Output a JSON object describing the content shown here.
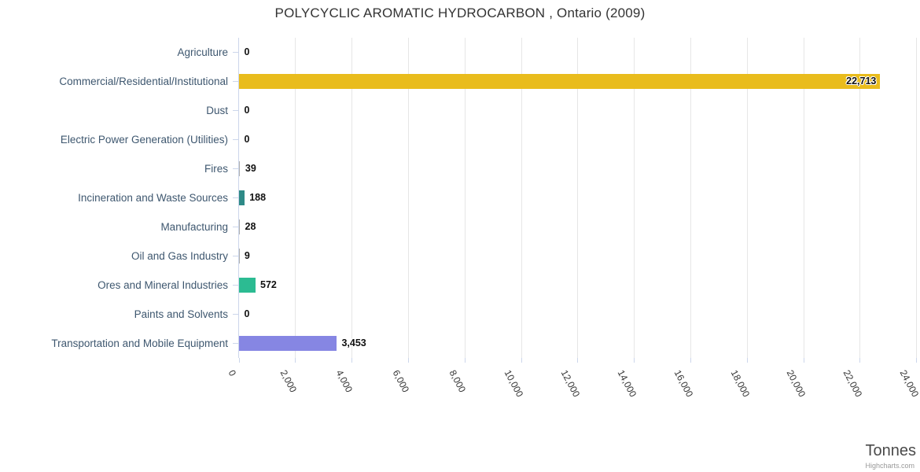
{
  "title": "POLYCYCLIC AROMATIC HYDROCARBON , Ontario (2009)",
  "y_axis_title": "Tonnes",
  "credits": "Highcharts.com",
  "chart_data": {
    "type": "bar",
    "title": "POLYCYCLIC AROMATIC HYDROCARBON , Ontario (2009)",
    "orientation": "horizontal",
    "categories": [
      "Agriculture",
      "Commercial/Residential/Institutional",
      "Dust",
      "Electric Power Generation (Utilities)",
      "Fires",
      "Incineration and Waste Sources",
      "Manufacturing",
      "Oil and Gas Industry",
      "Ores and Mineral Industries",
      "Paints and Solvents",
      "Transportation and Mobile Equipment"
    ],
    "values": [
      0,
      22713,
      0,
      0,
      39,
      188,
      28,
      9,
      572,
      0,
      3453
    ],
    "value_labels": [
      "0",
      "22,713",
      "0",
      "0",
      "39",
      "188",
      "28",
      "9",
      "572",
      "0",
      "3,453"
    ],
    "bar_colors": [
      "#b0b0b0",
      "#E9BC1C",
      "#b0b0b0",
      "#b0b0b0",
      "#b0b0b0",
      "#2E8A87",
      "#b0b0b0",
      "#b0b0b0",
      "#2CBB92",
      "#b0b0b0",
      "#8686E3"
    ],
    "xlabel": "Tonnes",
    "ylabel": "",
    "xlim": [
      0,
      24000
    ],
    "tick_interval": 2000,
    "tick_labels": [
      "0",
      "2,000",
      "4,000",
      "6,000",
      "8,000",
      "10,000",
      "12,000",
      "14,000",
      "16,000",
      "18,000",
      "20,000",
      "22,000",
      "24,000"
    ],
    "grid": true,
    "legend": "none"
  },
  "colors": {
    "grid": "#e6e6e6",
    "axis_line": "#ccd6eb",
    "category_label": "#3E576F",
    "tick_label": "#333333",
    "title": "#333333",
    "axis_title": "#4a4a4a",
    "credits": "#999999"
  }
}
